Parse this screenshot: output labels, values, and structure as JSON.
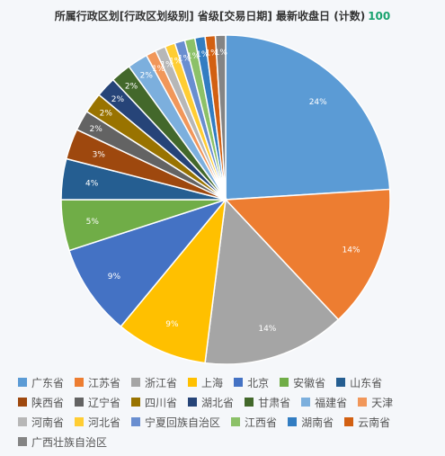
{
  "header": {
    "title": "所属行政区划[行政区划级别] 省级[交易日期] 最新收盘日 (计数)",
    "count": "100"
  },
  "chart_data": {
    "type": "pie",
    "title": "所属行政区划[行政区划级别] 省级[交易日期] 最新收盘日 (计数)",
    "total": 100,
    "slices": [
      {
        "label": "广东省",
        "value": 24,
        "color": "#5b9bd5"
      },
      {
        "label": "江苏省",
        "value": 14,
        "color": "#ed7d31"
      },
      {
        "label": "浙江省",
        "value": 14,
        "color": "#a5a5a5"
      },
      {
        "label": "上海",
        "value": 9,
        "color": "#ffc000"
      },
      {
        "label": "北京",
        "value": 9,
        "color": "#4472c4"
      },
      {
        "label": "安徽省",
        "value": 5,
        "color": "#70ad47"
      },
      {
        "label": "山东省",
        "value": 4,
        "color": "#255e91"
      },
      {
        "label": "陕西省",
        "value": 3,
        "color": "#9e480e"
      },
      {
        "label": "辽宁省",
        "value": 2,
        "color": "#636363"
      },
      {
        "label": "四川省",
        "value": 2,
        "color": "#997300"
      },
      {
        "label": "湖北省",
        "value": 2,
        "color": "#264478"
      },
      {
        "label": "甘肃省",
        "value": 2,
        "color": "#43682b"
      },
      {
        "label": "福建省",
        "value": 2,
        "color": "#7cafdd"
      },
      {
        "label": "天津",
        "value": 1,
        "color": "#f1975a"
      },
      {
        "label": "河南省",
        "value": 1,
        "color": "#b7b7b7"
      },
      {
        "label": "河北省",
        "value": 1,
        "color": "#ffcd33"
      },
      {
        "label": "宁夏回族自治区",
        "value": 1,
        "color": "#698ed0"
      },
      {
        "label": "江西省",
        "value": 1,
        "color": "#8cc168"
      },
      {
        "label": "湖南省",
        "value": 1,
        "color": "#327dc2"
      },
      {
        "label": "云南省",
        "value": 1,
        "color": "#d26012"
      },
      {
        "label": "广西壮族自治区",
        "value": 1,
        "color": "#848484"
      }
    ],
    "data_labels": [
      "24%",
      "14%",
      "14%",
      "9%",
      "9%",
      "5%",
      "4%",
      "3%",
      "2%",
      "2%",
      "2%",
      "2%",
      "2%",
      "1%",
      "1%",
      "1%",
      "1%",
      "1%",
      "1%",
      "1%",
      "1%"
    ],
    "legend_position": "bottom"
  }
}
